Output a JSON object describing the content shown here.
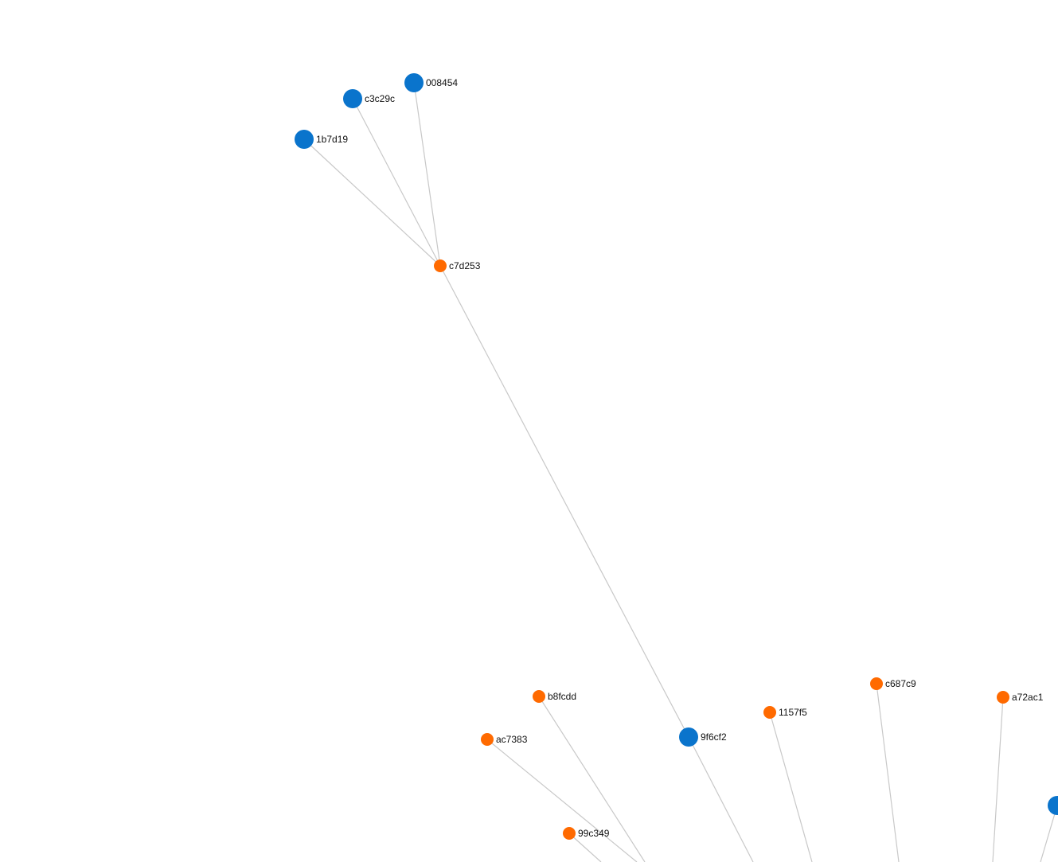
{
  "colors": {
    "background": "#ffffff",
    "edge": "#c8c8c8",
    "blue_node": "#0a74cc",
    "orange_node": "#ff6a00"
  },
  "nodes": [
    {
      "id": "008454",
      "label": "008454",
      "kind": "blue"
    },
    {
      "id": "c3c29c",
      "label": "c3c29c",
      "kind": "blue"
    },
    {
      "id": "1b7d19",
      "label": "1b7d19",
      "kind": "blue"
    },
    {
      "id": "c7d253",
      "label": "c7d253",
      "kind": "orange"
    },
    {
      "id": "b8fcdd",
      "label": "b8fcdd",
      "kind": "orange"
    },
    {
      "id": "ac7383",
      "label": "ac7383",
      "kind": "orange"
    },
    {
      "id": "9f6cf2",
      "label": "9f6cf2",
      "kind": "blue"
    },
    {
      "id": "1157f5",
      "label": "1157f5",
      "kind": "orange"
    },
    {
      "id": "c687c9",
      "label": "c687c9",
      "kind": "orange"
    },
    {
      "id": "a72ac1",
      "label": "a72ac1",
      "kind": "orange"
    },
    {
      "id": "99c349",
      "label": "99c349",
      "kind": "orange"
    },
    {
      "id": "offscreen-blue",
      "label": "",
      "kind": "blue"
    }
  ],
  "edges": [
    [
      "008454",
      "c7d253"
    ],
    [
      "c3c29c",
      "c7d253"
    ],
    [
      "1b7d19",
      "c7d253"
    ],
    [
      "c7d253",
      "9f6cf2"
    ]
  ]
}
